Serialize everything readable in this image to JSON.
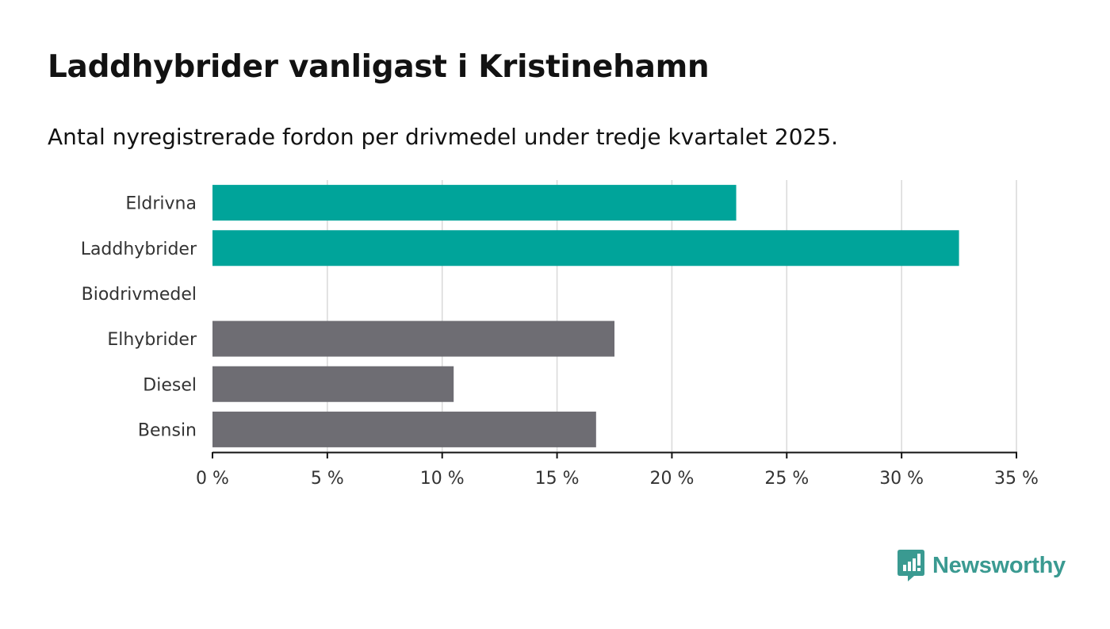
{
  "title": "Laddhybrider vanligast i Kristinehamn",
  "subtitle": "Antal nyregistrerade fordon per drivmedel under tredje kvartalet 2025.",
  "brand": {
    "name": "Newsworthy",
    "icon": "newsworthy-logo-icon",
    "color": "#3a9a91"
  },
  "colors": {
    "highlight": "#00a49a",
    "other": "#6e6d73",
    "grid": "#d9d9d9",
    "axis": "#121212",
    "label": "#333333"
  },
  "chart_data": {
    "type": "bar",
    "orientation": "horizontal",
    "title": "Laddhybrider vanligast i Kristinehamn",
    "xlabel": "",
    "ylabel": "",
    "xlim": [
      0,
      35
    ],
    "xticks": [
      0,
      5,
      10,
      15,
      20,
      25,
      30,
      35
    ],
    "tick_labels": [
      "0 %",
      "5 %",
      "10 %",
      "15 %",
      "20 %",
      "25 %",
      "30 %",
      "35 %"
    ],
    "grid": true,
    "categories": [
      "Eldrivna",
      "Laddhybrider",
      "Biodrivmedel",
      "Elhybrider",
      "Diesel",
      "Bensin"
    ],
    "values": [
      22.8,
      32.5,
      0,
      17.5,
      10.5,
      16.7
    ],
    "bar_colors": [
      "highlight",
      "highlight",
      "other",
      "other",
      "other",
      "other"
    ]
  }
}
